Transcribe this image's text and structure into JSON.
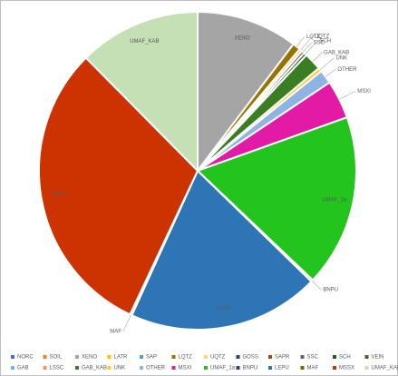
{
  "chart_data": {
    "type": "pie",
    "categories": [
      "NORC",
      "SOIL",
      "XENO",
      "LATR",
      "SAP",
      "LQTZ",
      "UQTZ",
      "GOSS",
      "SAPR",
      "SSC",
      "SCH",
      "VEIN",
      "GAB",
      "LSSC",
      "GAB_KAB",
      "UNK",
      "OTHER",
      "MSXI",
      "UMAF_1a",
      "BNPU",
      "LEPU",
      "MAF",
      "MSSX",
      "UMAF_KAB"
    ],
    "values": [
      0,
      0,
      10.3,
      0,
      0,
      0.8,
      0.3,
      0,
      0,
      0.3,
      0.3,
      0,
      0,
      0,
      1.8,
      0.4,
      1.4,
      3.9,
      17.5,
      0.2,
      19.5,
      0.2,
      30.5,
      12.4
    ],
    "colors": [
      "#4472c4",
      "#ed7d31",
      "#a5a5a5",
      "#ffc000",
      "#5b9bd5",
      "#997300",
      "#ffd966",
      "#264478",
      "#9e480e",
      "#636363",
      "#1e5b1e",
      "#43682b",
      "#7cafdd",
      "#f1975a",
      "#3a7d22",
      "#ffcd33",
      "#8fb4e3",
      "#e31aa6",
      "#22c41d",
      "#1f4e79",
      "#2e75b6",
      "#7f6000",
      "#cc3300",
      "#c5e0b4"
    ]
  }
}
